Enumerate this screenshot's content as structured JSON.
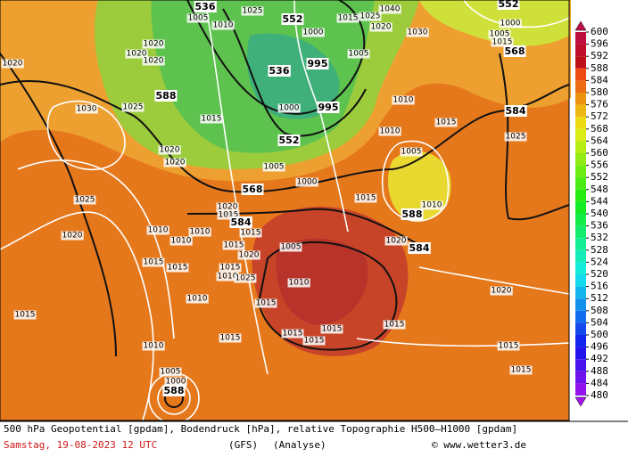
{
  "map": {
    "contour_labels": [
      "536",
      "1005",
      "1010",
      "1025",
      "552",
      "1015",
      "1025",
      "1040",
      "1020",
      "1030",
      "552",
      "1000",
      "1005",
      "1015",
      "568",
      "1020",
      "1020",
      "1020",
      "1020",
      "536",
      "1000",
      "995",
      "1005",
      "1010",
      "588",
      "1025",
      "1030",
      "1015",
      "1000",
      "995",
      "584",
      "1015",
      "1010",
      "1025",
      "552",
      "1020",
      "1020",
      "1005",
      "1005",
      "1000",
      "568",
      "1015",
      "1025",
      "1010",
      "1020",
      "1015",
      "584",
      "588",
      "1010",
      "1010",
      "1015",
      "1020",
      "1010",
      "1005",
      "1020",
      "584",
      "1015",
      "1020",
      "1015",
      "1015",
      "1015",
      "1010",
      "1025",
      "1010",
      "1020",
      "1010",
      "1015",
      "1015",
      "1015",
      "1015",
      "1015",
      "1015",
      "1015",
      "1010",
      "1015",
      "1015",
      "1005",
      "1000",
      "588"
    ]
  },
  "colorbar": {
    "levels": [
      600,
      596,
      592,
      588,
      584,
      580,
      576,
      572,
      568,
      564,
      560,
      556,
      552,
      548,
      544,
      540,
      536,
      532,
      528,
      524,
      520,
      516,
      512,
      508,
      504,
      500,
      496,
      492,
      488,
      484,
      480
    ]
  },
  "footer": {
    "description": "500 hPa Geopotential [gpdam], Bodendruck [hPa], relative Topographie H500—H1000 [gpdam]",
    "date": "Samstag, 19-08-2023  12 UTC",
    "model": "(GFS)",
    "run": "(Analyse)",
    "source": "© www.wetter3.de"
  }
}
